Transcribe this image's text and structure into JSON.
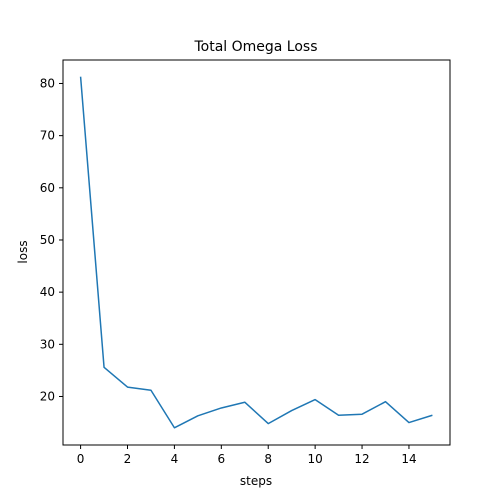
{
  "chart_data": {
    "type": "line",
    "title": "Total Omega Loss",
    "xlabel": "steps",
    "ylabel": "loss",
    "xlim": [
      -0.75,
      15.75
    ],
    "ylim": [
      10.7,
      84.5
    ],
    "xticks": [
      0,
      2,
      4,
      6,
      8,
      10,
      12,
      14
    ],
    "yticks": [
      20,
      30,
      40,
      50,
      60,
      70,
      80
    ],
    "grid": false,
    "legend": "none",
    "series": [
      {
        "color": "#1f77b4",
        "x": [
          0,
          1,
          2,
          3,
          4,
          5,
          6,
          7,
          8,
          9,
          10,
          11,
          12,
          13,
          14,
          15
        ],
        "y": [
          81.3,
          25.6,
          21.8,
          21.2,
          14.0,
          16.3,
          17.8,
          18.9,
          14.8,
          17.3,
          19.4,
          16.4,
          16.6,
          19.0,
          15.0,
          16.4
        ]
      }
    ]
  }
}
